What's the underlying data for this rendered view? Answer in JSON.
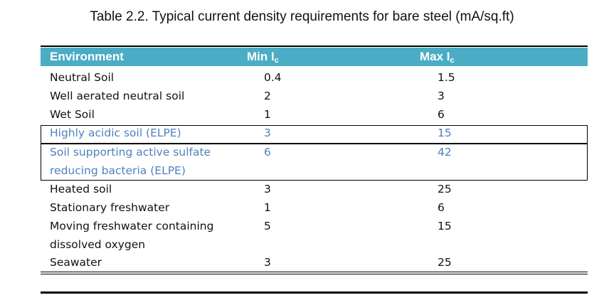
{
  "caption": "Table 2.2. Typical current density requirements for bare steel (mA/sq.ft)",
  "table": {
    "headers": {
      "environment": "Environment",
      "min": "Min I",
      "min_sub": "c",
      "max": "Max I",
      "max_sub": "c"
    },
    "rows": [
      {
        "env": "Neutral Soil",
        "min": "0.4",
        "max": "1.5"
      },
      {
        "env": "Well aerated neutral soil",
        "min": "2",
        "max": "3"
      },
      {
        "env": "Wet Soil",
        "min": "1",
        "max": "6"
      },
      {
        "env": "Highly acidic soil (ELPE)",
        "min": "3",
        "max": "15"
      },
      {
        "env": "Soil supporting active sulfate reducing bacteria (ELPE)",
        "min": "6",
        "max": "42"
      },
      {
        "env": "Heated soil",
        "min": "3",
        "max": "25"
      },
      {
        "env": "Stationary freshwater",
        "min": "1",
        "max": "6"
      },
      {
        "env": "Moving freshwater containing dissolved oxygen",
        "min": "5",
        "max": "15"
      },
      {
        "env": "Seawater",
        "min": "3",
        "max": "25"
      }
    ],
    "highlight_color": "#4f81bd",
    "header_color": "#4bacc6"
  }
}
